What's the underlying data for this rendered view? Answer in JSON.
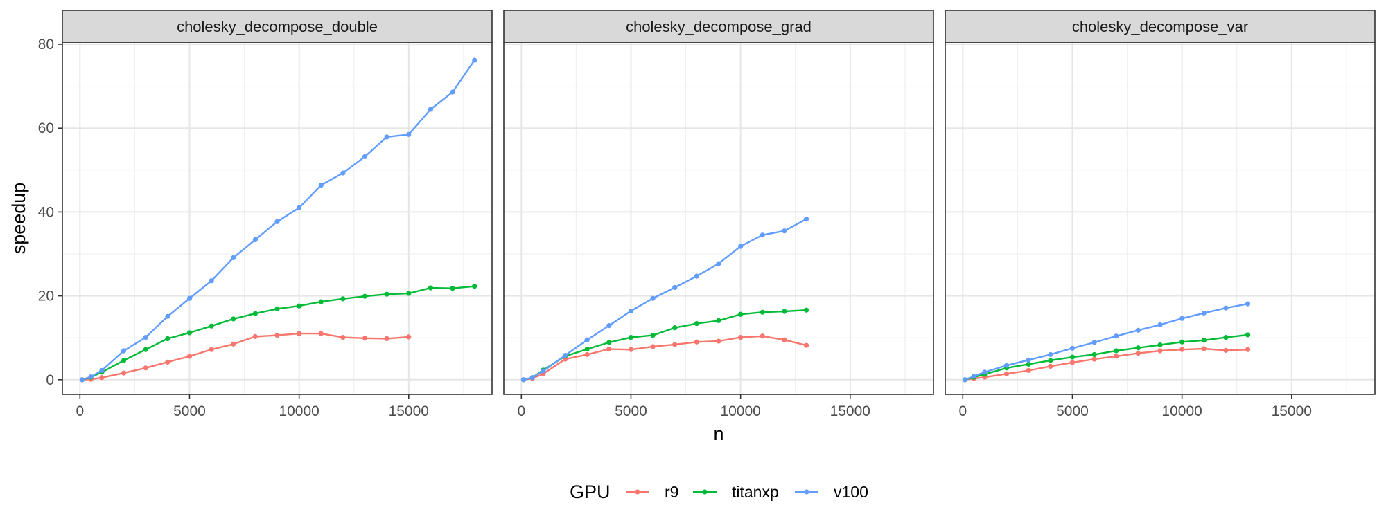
{
  "chart_data": {
    "type": "line",
    "xlabel": "n",
    "ylabel": "speedup",
    "xlim": [
      -800,
      18800
    ],
    "ylim": [
      -3.5,
      80.5
    ],
    "x_ticks": [
      0,
      5000,
      10000,
      15000
    ],
    "y_ticks": [
      0,
      20,
      40,
      60,
      80
    ],
    "grid": true,
    "facet_grid": true,
    "legend": {
      "title": "GPU",
      "position": "bottom",
      "entries": [
        "r9",
        "titanxp",
        "v100"
      ]
    },
    "colors": {
      "r9": "#F8766D",
      "titanxp": "#00BA38",
      "v100": "#619CFF"
    },
    "panels": [
      {
        "title": "cholesky_decompose_double",
        "series": [
          {
            "name": "r9",
            "color": "#F8766D",
            "x": [
              100,
              500,
              1000,
              2000,
              3000,
              4000,
              5000,
              6000,
              7000,
              8000,
              9000,
              10000,
              11000,
              12000,
              13000,
              14000,
              15000
            ],
            "y": [
              0,
              0.1,
              0.5,
              1.6,
              2.8,
              4.2,
              5.6,
              7.2,
              8.5,
              10.3,
              10.6,
              11.0,
              11.0,
              10.1,
              9.9,
              9.8,
              10.2
            ]
          },
          {
            "name": "titanxp",
            "color": "#00BA38",
            "x": [
              100,
              500,
              1000,
              2000,
              3000,
              4000,
              5000,
              6000,
              7000,
              8000,
              9000,
              10000,
              11000,
              12000,
              13000,
              14000,
              15000,
              16000,
              17000,
              18000
            ],
            "y": [
              0,
              0.6,
              1.8,
              4.6,
              7.2,
              9.8,
              11.2,
              12.8,
              14.5,
              15.8,
              16.9,
              17.6,
              18.6,
              19.3,
              19.9,
              20.4,
              20.6,
              21.9,
              21.8,
              22.3
            ]
          },
          {
            "name": "v100",
            "color": "#619CFF",
            "x": [
              100,
              500,
              1000,
              2000,
              3000,
              4000,
              5000,
              6000,
              7000,
              8000,
              9000,
              10000,
              11000,
              12000,
              13000,
              14000,
              15000,
              16000,
              17000,
              18000
            ],
            "y": [
              0,
              0.7,
              2.2,
              6.9,
              10.1,
              15.1,
              19.4,
              23.6,
              29.1,
              33.4,
              37.7,
              41.0,
              46.4,
              49.3,
              53.2,
              57.9,
              58.5,
              64.5,
              68.6,
              76.2
            ]
          }
        ]
      },
      {
        "title": "cholesky_decompose_grad",
        "series": [
          {
            "name": "r9",
            "color": "#F8766D",
            "x": [
              100,
              500,
              1000,
              2000,
              3000,
              4000,
              5000,
              6000,
              7000,
              8000,
              9000,
              10000,
              11000,
              12000,
              13000
            ],
            "y": [
              0,
              0.3,
              1.4,
              4.9,
              6.0,
              7.3,
              7.2,
              7.9,
              8.4,
              9.0,
              9.2,
              10.1,
              10.4,
              9.5,
              8.2
            ]
          },
          {
            "name": "titanxp",
            "color": "#00BA38",
            "x": [
              100,
              500,
              1000,
              2000,
              3000,
              4000,
              5000,
              6000,
              7000,
              8000,
              9000,
              10000,
              11000,
              12000,
              13000
            ],
            "y": [
              0,
              0.5,
              2.3,
              5.6,
              7.3,
              8.9,
              10.1,
              10.6,
              12.4,
              13.4,
              14.1,
              15.6,
              16.1,
              16.3,
              16.6
            ]
          },
          {
            "name": "v100",
            "color": "#619CFF",
            "x": [
              100,
              500,
              1000,
              2000,
              3000,
              4000,
              5000,
              6000,
              7000,
              8000,
              9000,
              10000,
              11000,
              12000,
              13000
            ],
            "y": [
              0,
              0.5,
              2.1,
              5.8,
              9.5,
              12.9,
              16.4,
              19.4,
              22.0,
              24.7,
              27.7,
              31.8,
              34.5,
              35.5,
              38.3
            ]
          }
        ]
      },
      {
        "title": "cholesky_decompose_var",
        "series": [
          {
            "name": "r9",
            "color": "#F8766D",
            "x": [
              100,
              500,
              1000,
              2000,
              3000,
              4000,
              5000,
              6000,
              7000,
              8000,
              9000,
              10000,
              11000,
              12000,
              13000
            ],
            "y": [
              0,
              0.3,
              0.6,
              1.4,
              2.2,
              3.2,
              4.1,
              4.9,
              5.6,
              6.3,
              6.9,
              7.2,
              7.4,
              7.0,
              7.2
            ]
          },
          {
            "name": "titanxp",
            "color": "#00BA38",
            "x": [
              100,
              500,
              1000,
              2000,
              3000,
              4000,
              5000,
              6000,
              7000,
              8000,
              9000,
              10000,
              11000,
              12000,
              13000
            ],
            "y": [
              0,
              0.6,
              1.3,
              2.8,
              3.7,
              4.6,
              5.4,
              6.0,
              6.9,
              7.6,
              8.3,
              9.0,
              9.4,
              10.1,
              10.7
            ]
          },
          {
            "name": "v100",
            "color": "#619CFF",
            "x": [
              100,
              500,
              1000,
              2000,
              3000,
              4000,
              5000,
              6000,
              7000,
              8000,
              9000,
              10000,
              11000,
              12000,
              13000
            ],
            "y": [
              0,
              0.8,
              1.8,
              3.4,
              4.7,
              6.0,
              7.5,
              8.9,
              10.4,
              11.8,
              13.1,
              14.6,
              15.9,
              17.1,
              18.1
            ]
          }
        ]
      }
    ]
  }
}
